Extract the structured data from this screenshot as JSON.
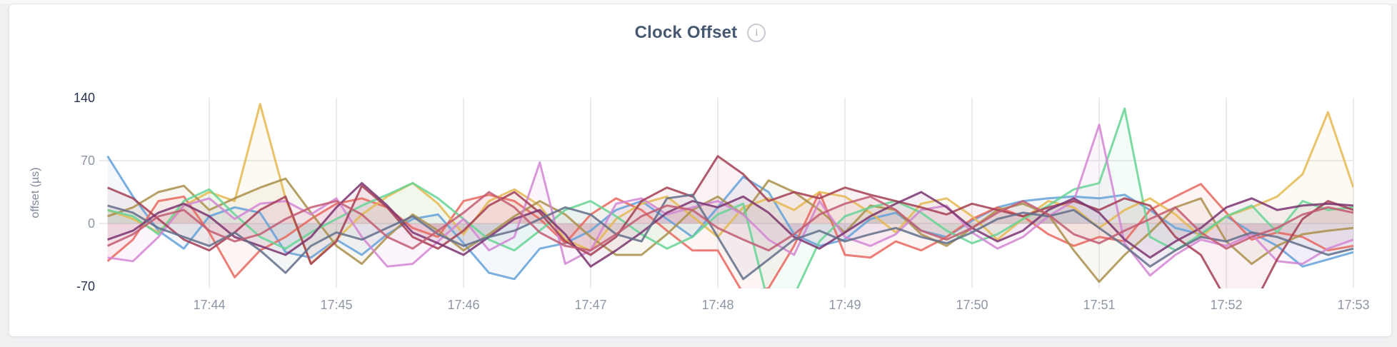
{
  "header": {
    "info_icon_glyph": "i"
  },
  "chart_data": {
    "type": "line",
    "title": "Clock Offset",
    "xlabel": "",
    "ylabel": "offset (µs)",
    "ylim": [
      -72,
      172
    ],
    "yticks": [
      {
        "label": "140",
        "value": 140,
        "strong": true
      },
      {
        "label": "70",
        "value": 70,
        "strong": false
      },
      {
        "label": "0",
        "value": 0,
        "strong": false
      },
      {
        "label": "-70",
        "value": -70,
        "strong": true
      }
    ],
    "y_gridlines": [
      70,
      0
    ],
    "xticks": [
      "17:44",
      "17:45",
      "17:46",
      "17:47",
      "17:48",
      "17:49",
      "17:50",
      "17:51",
      "17:52",
      "17:53"
    ],
    "x_start_minute": 43.2,
    "x_step_minute": 0.2,
    "grid_color": "#ebebec",
    "tick_color_strong": "#25314f",
    "tick_color_muted": "#8d96a5",
    "axis_label_color": "#7e8798",
    "legend": "none",
    "series": [
      {
        "name": "series-1-blue",
        "color": "#64A1D8",
        "values": [
          75,
          30,
          -8,
          -28,
          8,
          18,
          12,
          -32,
          -38,
          -18,
          -35,
          -12,
          5,
          10,
          -22,
          -55,
          -62,
          -28,
          -22,
          -8,
          15,
          25,
          5,
          -15,
          18,
          52,
          35,
          -12,
          -25,
          -18,
          5,
          12,
          -8,
          -15,
          3,
          18,
          25,
          28,
          30,
          28,
          32,
          15,
          -5,
          -12,
          8,
          -10,
          -25,
          -48,
          -40,
          -32
        ]
      },
      {
        "name": "series-2-coral",
        "color": "#E8675E",
        "values": [
          -42,
          -18,
          25,
          30,
          -10,
          -60,
          -30,
          -15,
          5,
          22,
          28,
          18,
          -5,
          -15,
          25,
          32,
          25,
          5,
          -22,
          10,
          28,
          15,
          -8,
          -30,
          -30,
          -78,
          -72,
          -25,
          35,
          -35,
          -38,
          -20,
          -30,
          -15,
          5,
          18,
          8,
          -12,
          -25,
          -15,
          -20,
          15,
          30,
          44,
          12,
          -18,
          -10,
          -15,
          -30,
          -25
        ]
      },
      {
        "name": "series-3-gold",
        "color": "#E4B850",
        "values": [
          15,
          5,
          -10,
          20,
          35,
          25,
          133,
          28,
          -45,
          -18,
          10,
          30,
          45,
          22,
          -12,
          25,
          38,
          20,
          -18,
          -30,
          5,
          22,
          30,
          8,
          -15,
          18,
          28,
          15,
          35,
          30,
          12,
          -10,
          22,
          28,
          8,
          -18,
          5,
          25,
          18,
          -5,
          15,
          28,
          10,
          -15,
          8,
          18,
          30,
          55,
          124,
          40
        ]
      },
      {
        "name": "series-4-khaki",
        "color": "#AA8F4B",
        "values": [
          8,
          18,
          35,
          42,
          15,
          28,
          40,
          50,
          12,
          -25,
          -45,
          -15,
          10,
          -8,
          -30,
          -12,
          8,
          25,
          10,
          -15,
          -35,
          -35,
          -12,
          15,
          30,
          10,
          48,
          35,
          15,
          -10,
          20,
          15,
          -12,
          -25,
          -5,
          15,
          22,
          10,
          -30,
          -65,
          -35,
          -10,
          18,
          28,
          -20,
          -45,
          -25,
          -12,
          -8,
          -5
        ]
      },
      {
        "name": "series-5-emerald",
        "color": "#66D394",
        "values": [
          15,
          8,
          -12,
          25,
          38,
          10,
          -15,
          -28,
          -10,
          5,
          20,
          32,
          45,
          28,
          5,
          -18,
          -30,
          -8,
          15,
          25,
          8,
          -12,
          -28,
          -15,
          10,
          22,
          -90,
          -80,
          -20,
          8,
          18,
          25,
          12,
          -8,
          -22,
          -12,
          5,
          20,
          38,
          45,
          128,
          -15,
          -30,
          -12,
          8,
          20,
          -10,
          25,
          15,
          18
        ]
      },
      {
        "name": "series-6-orchid",
        "color": "#D286D3",
        "values": [
          -38,
          -42,
          -15,
          20,
          28,
          5,
          22,
          25,
          10,
          28,
          -15,
          -48,
          -45,
          -20,
          5,
          -30,
          -15,
          68,
          -45,
          -30,
          22,
          28,
          10,
          18,
          25,
          10,
          -18,
          -35,
          25,
          -15,
          -25,
          -12,
          15,
          20,
          -10,
          -28,
          -15,
          8,
          25,
          110,
          -22,
          -58,
          -35,
          -18,
          -25,
          -12,
          -42,
          -45,
          -28,
          -18
        ]
      },
      {
        "name": "series-7-maroon",
        "color": "#A53E54",
        "values": [
          40,
          28,
          5,
          -18,
          -30,
          -10,
          15,
          30,
          -45,
          -20,
          42,
          18,
          -15,
          -28,
          -8,
          20,
          35,
          12,
          -20,
          -35,
          -15,
          25,
          40,
          30,
          75,
          55,
          25,
          35,
          28,
          40,
          32,
          25,
          18,
          10,
          22,
          15,
          8,
          18,
          25,
          15,
          28,
          20,
          -15,
          -35,
          -85,
          -95,
          -40,
          5,
          25,
          15
        ]
      },
      {
        "name": "series-8-plum",
        "color": "#7B3470",
        "values": [
          -18,
          -8,
          12,
          22,
          8,
          -15,
          -25,
          -35,
          -15,
          18,
          45,
          20,
          -10,
          -22,
          -35,
          -15,
          5,
          15,
          -12,
          -48,
          -30,
          -10,
          12,
          25,
          18,
          30,
          12,
          -15,
          -28,
          -10,
          8,
          22,
          35,
          18,
          -5,
          -20,
          -8,
          15,
          28,
          12,
          -18,
          -38,
          -20,
          -5,
          18,
          28,
          15,
          20,
          22,
          20
        ]
      },
      {
        "name": "series-9-slate",
        "color": "#616E89",
        "values": [
          20,
          12,
          -5,
          -15,
          -25,
          -10,
          -30,
          -55,
          -25,
          -10,
          -18,
          -5,
          8,
          -12,
          -25,
          -15,
          -8,
          5,
          18,
          10,
          -12,
          -20,
          28,
          32,
          -15,
          -62,
          -40,
          -18,
          -8,
          -20,
          -12,
          -5,
          -15,
          -22,
          -10,
          5,
          12,
          8,
          15,
          -5,
          -25,
          -48,
          -30,
          -15,
          -20,
          -10,
          -15,
          -25,
          -35,
          -28
        ]
      },
      {
        "name": "series-10-rose",
        "color": "#C25C72",
        "values": [
          -25,
          -12,
          8,
          15,
          -8,
          -20,
          -12,
          5,
          18,
          25,
          10,
          -15,
          -28,
          -8,
          12,
          35,
          18,
          -10,
          -25,
          -30,
          -12,
          8,
          20,
          15,
          -5,
          -18,
          -30,
          -12,
          10,
          22,
          30,
          15,
          -8,
          -18,
          -5,
          12,
          25,
          10,
          -12,
          -22,
          -8,
          5,
          18,
          -10,
          -28,
          -15,
          -5,
          10,
          18,
          12
        ]
      }
    ]
  }
}
